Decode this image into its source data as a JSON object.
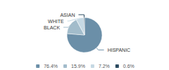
{
  "chart_data": {
    "type": "pie",
    "categories": [
      "HISPANIC",
      "BLACK",
      "WHITE",
      "ASIAN"
    ],
    "values": [
      76.4,
      15.9,
      7.2,
      0.6
    ],
    "value_labels": [
      "76.4%",
      "15.9%",
      "7.2%",
      "0.6%"
    ],
    "colors": [
      "#6b8fa8",
      "#a2bccb",
      "#c5d8e3",
      "#2b4a60"
    ],
    "legend": "bottom"
  }
}
